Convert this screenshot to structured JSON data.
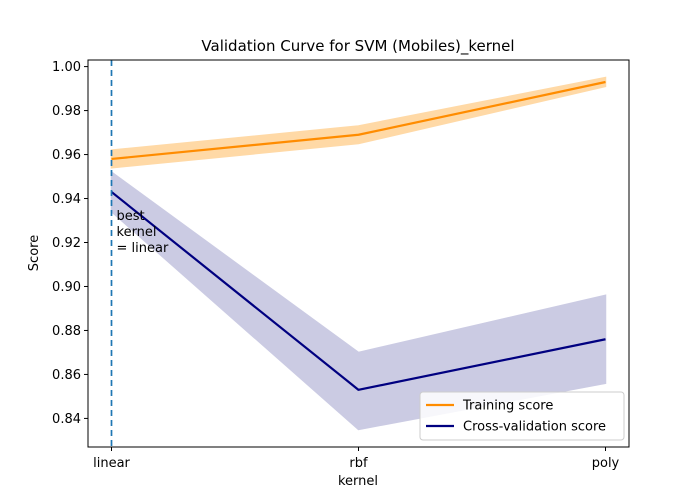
{
  "chart_data": {
    "type": "line",
    "title": "Validation Curve for SVM (Mobiles)_kernel",
    "xlabel": "kernel",
    "ylabel": "Score",
    "categories": [
      "linear",
      "rbf",
      "poly"
    ],
    "ylim": [
      0.827,
      1.003
    ],
    "yticks": [
      0.84,
      0.86,
      0.88,
      0.9,
      0.92,
      0.94,
      0.96,
      0.98,
      1.0
    ],
    "ytick_labels": [
      "0.84",
      "0.86",
      "0.88",
      "0.90",
      "0.92",
      "0.94",
      "0.96",
      "0.98",
      "1.00"
    ],
    "grid": false,
    "legend_position": "bottom-right",
    "series": [
      {
        "name": "Training score",
        "color": "#ff8c00",
        "band_color": "#ffd9a6",
        "values": [
          0.958,
          0.969,
          0.993
        ],
        "lower": [
          0.954,
          0.965,
          0.991
        ],
        "upper": [
          0.962,
          0.973,
          0.995
        ]
      },
      {
        "name": "Cross-validation score",
        "color": "#000080",
        "band_color": "#cbcbe3",
        "values": [
          0.943,
          0.853,
          0.876
        ],
        "lower": [
          0.934,
          0.835,
          0.856
        ],
        "upper": [
          0.952,
          0.87,
          0.896
        ]
      }
    ],
    "best_marker": {
      "category": "linear",
      "color": "#1f77b4",
      "annotation_lines": [
        "best",
        "kernel",
        "= linear"
      ]
    }
  }
}
